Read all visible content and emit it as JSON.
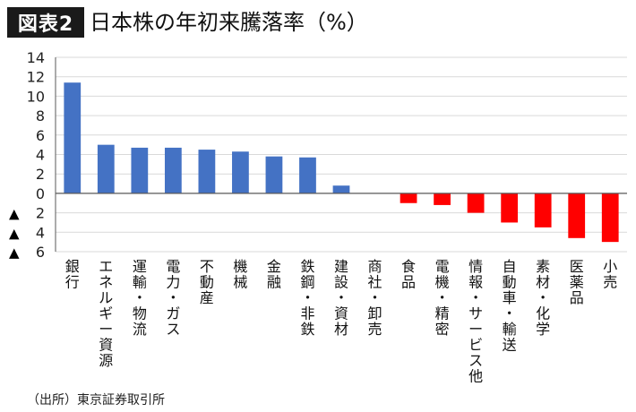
{
  "header": {
    "badge": "図表2",
    "title": "日本株の年初来騰落率（%）"
  },
  "source": "（出所）東京証券取引所",
  "chart_data": {
    "type": "bar",
    "categories": [
      "銀行",
      "エネルギー資源",
      "運輸・物流",
      "電力・ガス",
      "不動産",
      "機械",
      "金融",
      "鉄鋼・非鉄",
      "建設・資材",
      "商社・卸売",
      "食品",
      "電機・精密",
      "情報・サービス他",
      "自動車・輸送",
      "素材・化学",
      "医薬品",
      "小売"
    ],
    "values": [
      11.4,
      5.0,
      4.7,
      4.7,
      4.5,
      4.3,
      3.8,
      3.7,
      0.8,
      0.0,
      -1.0,
      -1.2,
      -2.0,
      -3.0,
      -3.5,
      -4.6,
      -5.0
    ],
    "ylim": [
      -6,
      14
    ],
    "yticks": [
      14,
      12,
      10,
      8,
      6,
      4,
      2,
      0,
      -2,
      -4,
      -6
    ],
    "ytick_labels": [
      "14",
      "12",
      "10",
      "8",
      "6",
      "4",
      "2",
      "0",
      "▲ 2",
      "▲ 4",
      "▲ 6"
    ],
    "grid": true,
    "colors": {
      "positive": "#4472c4",
      "negative": "#ff0000",
      "grid": "#d9d9d9",
      "axis": "#595959"
    }
  }
}
